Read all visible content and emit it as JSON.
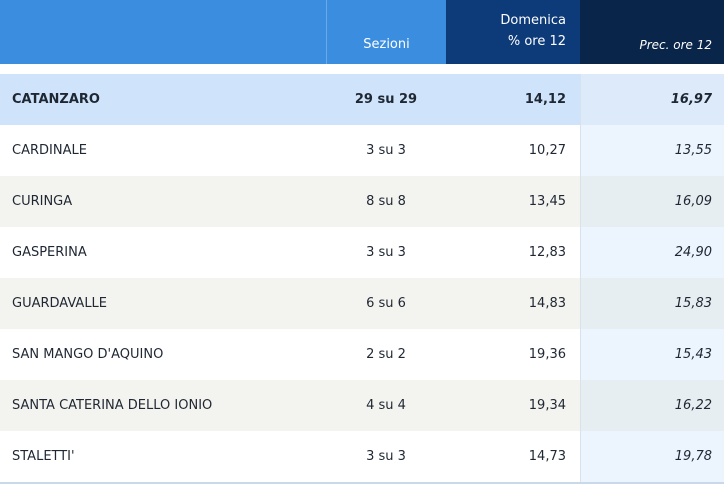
{
  "header": {
    "name": "",
    "sezioni": "Sezioni",
    "domenica_line1": "Domenica",
    "domenica_line2": "% ore 12",
    "prec": "Prec. ore 12"
  },
  "total": {
    "name": "CATANZARO",
    "sezioni": "29 su 29",
    "domenica": "14,12",
    "prec": "16,97"
  },
  "rows": [
    {
      "name": "CARDINALE",
      "sezioni": "3 su 3",
      "domenica": "10,27",
      "prec": "13,55"
    },
    {
      "name": "CURINGA",
      "sezioni": "8 su 8",
      "domenica": "13,45",
      "prec": "16,09"
    },
    {
      "name": "GASPERINA",
      "sezioni": "3 su 3",
      "domenica": "12,83",
      "prec": "24,90"
    },
    {
      "name": "GUARDAVALLE",
      "sezioni": "6 su 6",
      "domenica": "14,83",
      "prec": "15,83"
    },
    {
      "name": "SAN MANGO D'AQUINO",
      "sezioni": "2 su 2",
      "domenica": "19,36",
      "prec": "15,43"
    },
    {
      "name": "SANTA CATERINA DELLO IONIO",
      "sezioni": "4 su 4",
      "domenica": "19,34",
      "prec": "16,22"
    },
    {
      "name": "STALETTI'",
      "sezioni": "3 su 3",
      "domenica": "14,73",
      "prec": "19,78"
    }
  ],
  "colors": {
    "header_light": "#3b8de0",
    "header_dark": "#0d3a78",
    "header_darkest": "#092549",
    "total_row": "#cfe4fb"
  }
}
